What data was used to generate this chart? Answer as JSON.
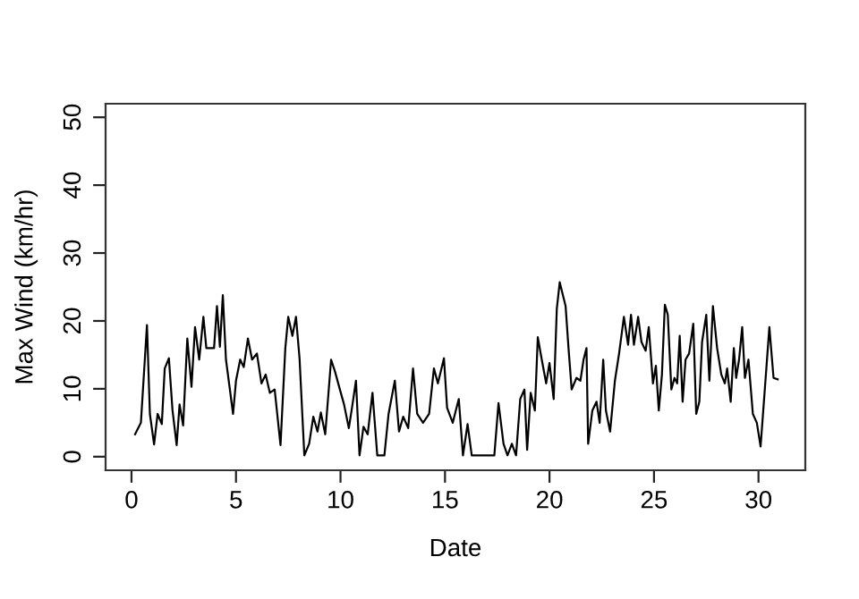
{
  "chart_data": {
    "type": "line",
    "xlabel": "Date",
    "ylabel": "Max Wind (km/hr)",
    "xlim": [
      -1.24,
      32.24
    ],
    "ylim": [
      -2,
      52
    ],
    "xticks": [
      0,
      5,
      10,
      15,
      20,
      25,
      30
    ],
    "yticks": [
      0,
      10,
      20,
      30,
      40,
      50
    ],
    "grid": false,
    "marker": "none",
    "line_style": "solid",
    "series": [
      {
        "color": "#000000",
        "x": [
          0.17,
          0.45,
          0.74,
          0.88,
          1.08,
          1.25,
          1.45,
          1.59,
          1.79,
          1.96,
          2.16,
          2.3,
          2.47,
          2.67,
          2.87,
          3.04,
          3.24,
          3.44,
          3.58,
          3.95,
          4.09,
          4.23,
          4.37,
          4.52,
          4.86,
          5.0,
          5.2,
          5.37,
          5.57,
          5.77,
          6.0,
          6.22,
          6.42,
          6.62,
          6.85,
          7.13,
          7.36,
          7.5,
          7.7,
          7.87,
          8.04,
          8.27,
          8.5,
          8.7,
          8.9,
          9.06,
          9.27,
          9.55,
          9.74,
          9.97,
          10.17,
          10.4,
          10.55,
          10.74,
          10.91,
          11.1,
          11.3,
          11.53,
          11.76,
          12.1,
          12.3,
          12.6,
          12.8,
          13.0,
          13.24,
          13.47,
          13.67,
          13.95,
          14.24,
          14.47,
          14.66,
          14.95,
          15.1,
          15.37,
          15.66,
          15.86,
          16.08,
          16.28,
          16.5,
          17.36,
          17.56,
          17.8,
          17.99,
          18.2,
          18.4,
          18.6,
          18.8,
          18.93,
          19.1,
          19.3,
          19.44,
          19.63,
          19.84,
          20.0,
          20.2,
          20.35,
          20.49,
          20.77,
          20.91,
          21.06,
          21.29,
          21.48,
          21.63,
          21.77,
          21.85,
          22.05,
          22.25,
          22.4,
          22.57,
          22.7,
          22.9,
          23.13,
          23.33,
          23.56,
          23.76,
          23.9,
          24.04,
          24.24,
          24.4,
          24.6,
          24.75,
          24.95,
          25.09,
          25.23,
          25.38,
          25.52,
          25.66,
          25.83,
          25.98,
          26.11,
          26.23,
          26.37,
          26.51,
          26.68,
          26.88,
          27.02,
          27.17,
          27.3,
          27.5,
          27.65,
          27.82,
          28.02,
          28.22,
          28.39,
          28.5,
          28.67,
          28.82,
          28.93,
          29.07,
          29.22,
          29.35,
          29.52,
          29.73,
          29.92,
          30.1,
          30.29,
          30.52,
          30.72,
          30.92
        ],
        "values": [
          3.3,
          5,
          19.4,
          6.3,
          1.8,
          6.3,
          4.8,
          13,
          14.5,
          6.9,
          1.7,
          7.7,
          4.6,
          17.4,
          10.3,
          19.1,
          14.3,
          20.6,
          16,
          16,
          22.2,
          16.2,
          23.8,
          14.3,
          6.3,
          11.2,
          14.3,
          13.2,
          17.4,
          14.3,
          15.2,
          10.8,
          12.1,
          9.4,
          9.9,
          1.7,
          16,
          20.6,
          17.8,
          20.6,
          14.5,
          0.2,
          1.9,
          5.9,
          3.7,
          6.5,
          3.3,
          14.3,
          12.5,
          9.9,
          7.7,
          4.2,
          7.2,
          11.2,
          0.2,
          4.4,
          3.3,
          9.4,
          0.2,
          0.2,
          6.3,
          11.2,
          3.7,
          5.9,
          4.2,
          13,
          6.3,
          5,
          6.3,
          13,
          10.8,
          14.5,
          7.2,
          5,
          8.5,
          0.2,
          4.8,
          0.2,
          0.2,
          0.2,
          7.9,
          1.9,
          0.2,
          1.9,
          0.2,
          8.5,
          9.9,
          1,
          9.4,
          6.8,
          17.6,
          14.3,
          10.8,
          13.8,
          8.5,
          21.8,
          25.7,
          22.2,
          16,
          9.9,
          11.6,
          11.2,
          14.3,
          16,
          1.9,
          6.8,
          8.1,
          5,
          14.3,
          6.8,
          3.7,
          11.2,
          15.2,
          20.6,
          16.5,
          20.9,
          16.5,
          20.6,
          16.9,
          15.6,
          19.1,
          10.8,
          13.4,
          6.8,
          12.1,
          22.4,
          20.9,
          9.9,
          11.6,
          10.8,
          17.8,
          8.1,
          14.3,
          15.2,
          19.6,
          6.3,
          8.1,
          16.9,
          20.9,
          11.2,
          22.2,
          16,
          12.1,
          10.8,
          13,
          8.1,
          16,
          11.6,
          14.3,
          19.1,
          11.6,
          14.3,
          6.3,
          5,
          1.5,
          9.4,
          19.1,
          11.6,
          11.4
        ]
      }
    ]
  }
}
